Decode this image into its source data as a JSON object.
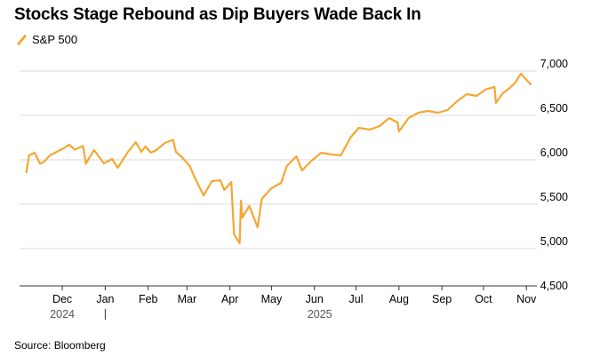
{
  "title": "Stocks Stage Rebound as Dip Buyers Wade Back In",
  "source": "Source: Bloomberg",
  "colors": {
    "series": "#F5A733",
    "grid": "#d9d9d9",
    "axis": "#333333"
  },
  "chart_data": {
    "type": "line",
    "title": "Stocks Stage Rebound as Dip Buyers Wade Back In",
    "xlabel": "",
    "ylabel": "",
    "ylim": [
      4500,
      7000
    ],
    "yticks": [
      4500,
      5000,
      5500,
      6000,
      6500,
      7000
    ],
    "ytick_labels": [
      "4,500",
      "5,000",
      "5,500",
      "6,000",
      "6,500",
      "7,000"
    ],
    "xticks": [
      "Dec",
      "Jan",
      "Feb",
      "Mar",
      "Apr",
      "May",
      "Jun",
      "Jul",
      "Aug",
      "Sep",
      "Oct",
      "Nov"
    ],
    "year_labels": [
      "2024",
      "2025"
    ],
    "grid": true,
    "legend": "top-left",
    "series": [
      {
        "name": "S&P 500",
        "color": "#F5A733",
        "x": [
          "2024-11-05",
          "2024-11-07",
          "2024-11-11",
          "2024-11-15",
          "2024-11-18",
          "2024-11-22",
          "2024-11-27",
          "2024-12-02",
          "2024-12-06",
          "2024-12-10",
          "2024-12-16",
          "2024-12-18",
          "2024-12-20",
          "2024-12-24",
          "2024-12-31",
          "2025-01-06",
          "2025-01-10",
          "2025-01-15",
          "2025-01-17",
          "2025-01-23",
          "2025-01-27",
          "2025-01-30",
          "2025-02-03",
          "2025-02-07",
          "2025-02-13",
          "2025-02-19",
          "2025-02-21",
          "2025-02-25",
          "2025-03-03",
          "2025-03-06",
          "2025-03-10",
          "2025-03-13",
          "2025-03-19",
          "2025-03-25",
          "2025-03-28",
          "2025-04-02",
          "2025-04-04",
          "2025-04-08",
          "2025-04-09",
          "2025-04-10",
          "2025-04-15",
          "2025-04-21",
          "2025-04-24",
          "2025-05-01",
          "2025-05-08",
          "2025-05-12",
          "2025-05-19",
          "2025-05-23",
          "2025-05-30",
          "2025-06-06",
          "2025-06-13",
          "2025-06-20",
          "2025-06-27",
          "2025-07-03",
          "2025-07-11",
          "2025-07-18",
          "2025-07-25",
          "2025-07-31",
          "2025-08-01",
          "2025-08-08",
          "2025-08-15",
          "2025-08-22",
          "2025-08-29",
          "2025-09-05",
          "2025-09-12",
          "2025-09-19",
          "2025-09-26",
          "2025-10-03",
          "2025-10-09",
          "2025-10-10",
          "2025-10-15",
          "2025-10-20",
          "2025-10-24",
          "2025-10-28",
          "2025-10-31",
          "2025-11-04"
        ],
        "values": [
          5780,
          5970,
          6000,
          5875,
          5900,
          5970,
          6010,
          6050,
          6090,
          6035,
          6075,
          5875,
          5930,
          6030,
          5880,
          5930,
          5830,
          5950,
          6000,
          6120,
          6010,
          6070,
          6000,
          6030,
          6110,
          6145,
          6010,
          5955,
          5850,
          5740,
          5610,
          5520,
          5680,
          5690,
          5580,
          5670,
          5080,
          4980,
          5460,
          5270,
          5400,
          5160,
          5480,
          5600,
          5660,
          5850,
          5960,
          5800,
          5910,
          6000,
          5980,
          5970,
          6170,
          6280,
          6260,
          6300,
          6390,
          6340,
          6240,
          6390,
          6450,
          6470,
          6450,
          6480,
          6580,
          6660,
          6640,
          6715,
          6740,
          6560,
          6670,
          6730,
          6790,
          6890,
          6840,
          6770
        ]
      }
    ]
  }
}
